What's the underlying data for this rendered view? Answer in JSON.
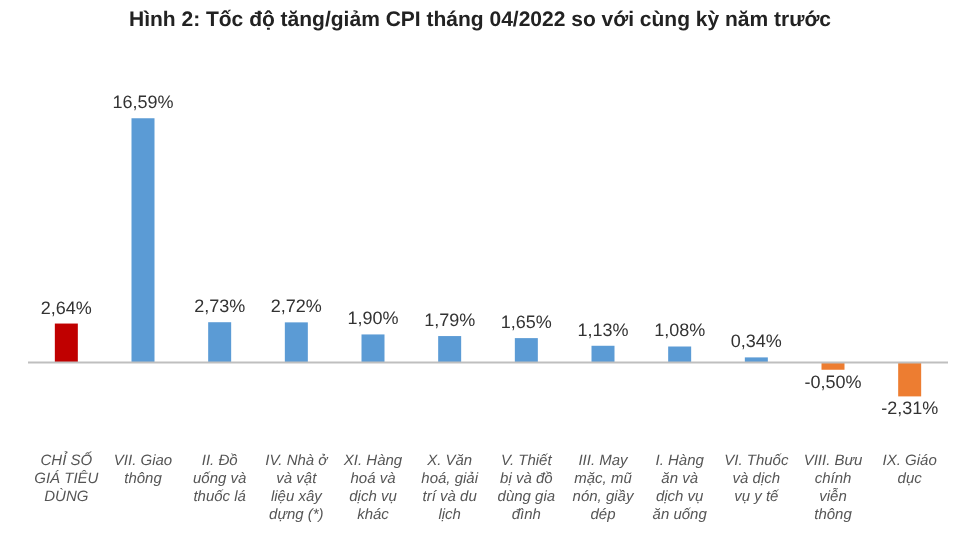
{
  "chart_data": {
    "type": "bar",
    "title": "Hình 2: Tốc độ tăng/giảm CPI tháng 04/2022 so với cùng kỳ năm trước",
    "categories": [
      "CHỈ SỐ GIÁ TIÊU DÙNG",
      "VII. Giao thông",
      "II. Đồ uống và thuốc lá",
      "IV. Nhà ở và vật liệu xây dựng (*)",
      "XI. Hàng hoá và dịch vụ khác",
      "X. Văn hoá, giải trí và du lịch",
      "V. Thiết bị và đồ dùng gia đình",
      "III. May mặc, mũ nón, giầy dép",
      "I. Hàng ăn và dịch vụ ăn uống",
      "VI. Thuốc và dịch vụ y tế",
      "VIII. Bưu chính viễn thông",
      "IX. Giáo dục"
    ],
    "values": [
      2.64,
      16.59,
      2.73,
      2.72,
      1.9,
      1.79,
      1.65,
      1.13,
      1.08,
      0.34,
      -0.5,
      -2.31
    ],
    "colors": [
      "#c00000",
      "#5b9bd5",
      "#5b9bd5",
      "#5b9bd5",
      "#5b9bd5",
      "#5b9bd5",
      "#5b9bd5",
      "#5b9bd5",
      "#5b9bd5",
      "#5b9bd5",
      "#ed7d31",
      "#ed7d31"
    ],
    "value_labels": [
      "2,64%",
      "16,59%",
      "2,73%",
      "2,72%",
      "1,90%",
      "1,79%",
      "1,65%",
      "1,13%",
      "1,08%",
      "0,34%",
      "-0,50%",
      "-2,31%"
    ],
    "relative": false,
    "grid": false,
    "legend": false
  }
}
